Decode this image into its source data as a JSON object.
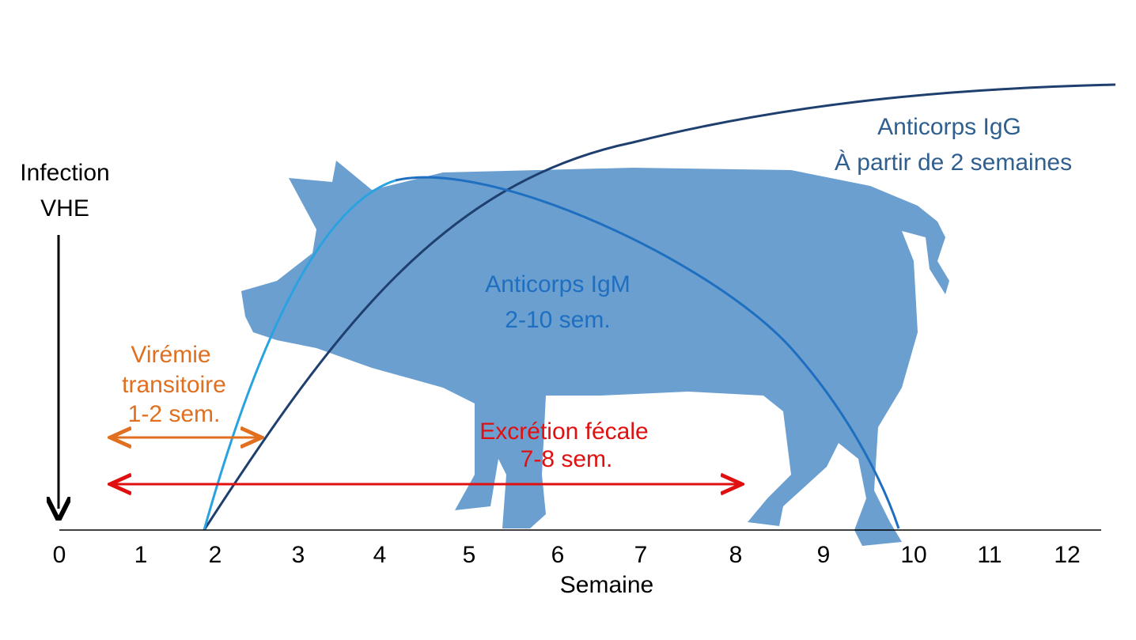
{
  "header": {
    "lines": [
      "Infection",
      "VHE"
    ]
  },
  "annotations": {
    "viremia": [
      "Virémie",
      "transitoire",
      "1-2 sem."
    ],
    "excretion": [
      "Excrétion fécale",
      "7-8 sem."
    ],
    "igm": [
      "Anticorps IgM",
      "2-10 sem."
    ],
    "igg": [
      "Anticorps IgG",
      "À partir de 2 semaines"
    ]
  },
  "axis": {
    "ticks": [
      "0",
      "1",
      "2",
      "3",
      "4",
      "5",
      "6",
      "7",
      "8",
      "9",
      "10",
      "11",
      "12"
    ],
    "title": "Semaine"
  }
}
